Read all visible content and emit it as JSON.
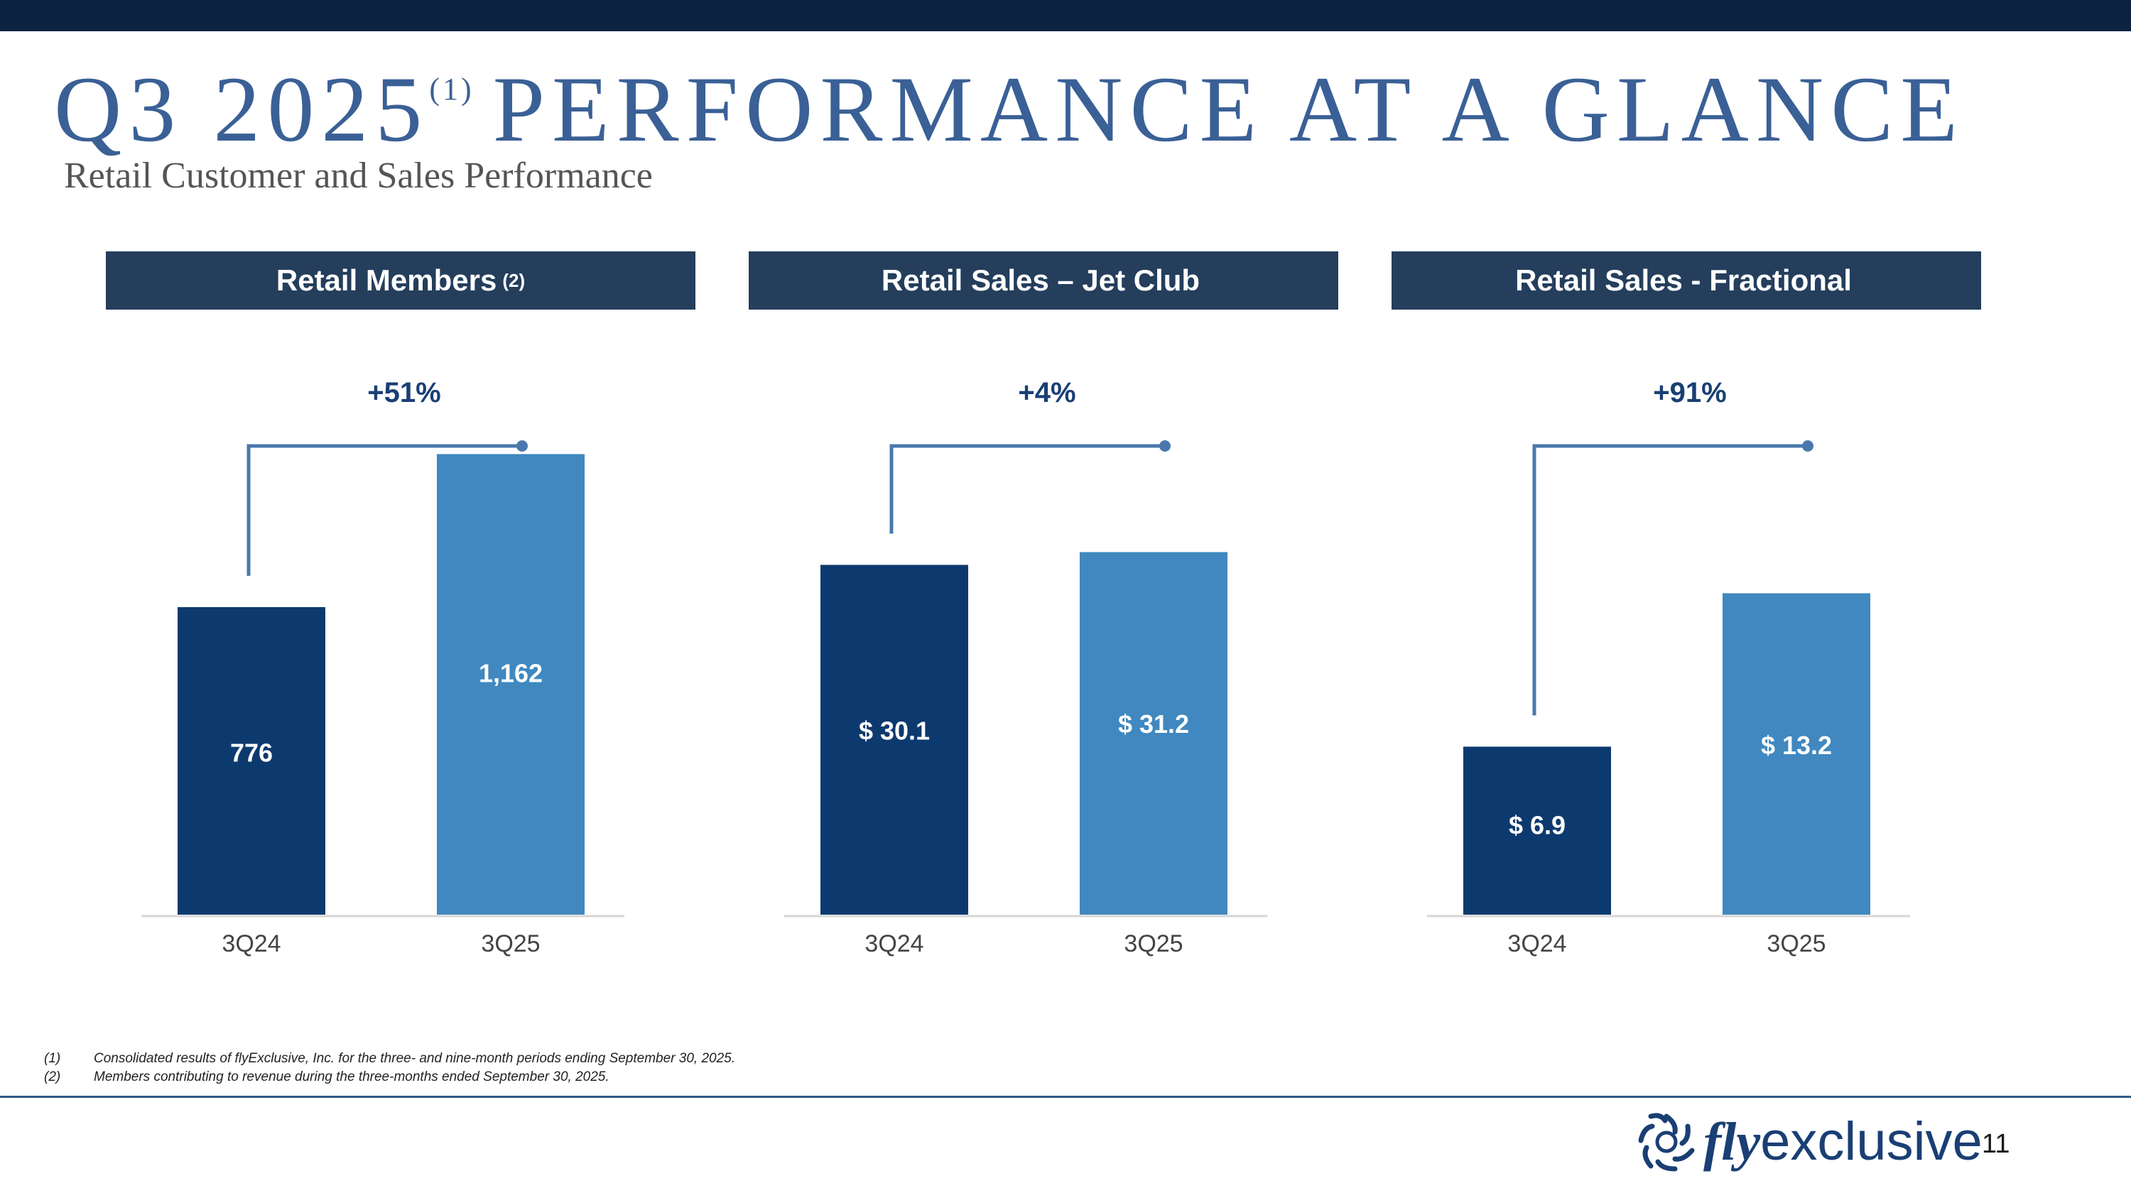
{
  "page": {
    "title": "Q3 2025",
    "title_sup": "(1)",
    "title_rest": "PERFORMANCE AT A GLANCE",
    "subtitle": "Retail Customer and Sales Performance"
  },
  "colors": {
    "top_bar": "#0b2240",
    "title": "#3a6096",
    "subtitle": "#555555",
    "header_bg": "#243e5c",
    "bar_3q24": "#0d3a6e",
    "bar_3q25": "#4088bf",
    "connector": "#4a78ad",
    "growth_label": "#1a3f74",
    "axis": "#d6d6d6",
    "tick": "#444444",
    "bottom_rule": "#2f5b8a",
    "logo": "#1a3f74"
  },
  "chart_data": [
    {
      "type": "bar",
      "title": "Retail Members",
      "title_sup": "(2)",
      "categories": [
        "3Q24",
        "3Q25"
      ],
      "values": [
        776,
        1162
      ],
      "labels": [
        "776",
        "1,162"
      ],
      "growth": "+51%",
      "ylim": [
        0,
        1290
      ],
      "xlabel": "",
      "ylabel": ""
    },
    {
      "type": "bar",
      "title": "Retail Sales – Jet Club",
      "title_sup": "",
      "categories": [
        "3Q24",
        "3Q25"
      ],
      "values": [
        30.1,
        31.2
      ],
      "labels": [
        "$ 30.1",
        "$ 31.2"
      ],
      "growth": "+4%",
      "ylim": [
        0,
        44
      ],
      "xlabel": "",
      "ylabel": ""
    },
    {
      "type": "bar",
      "title": "Retail Sales - Fractional",
      "title_sup": "",
      "categories": [
        "3Q24",
        "3Q25"
      ],
      "values": [
        6.9,
        13.2
      ],
      "labels": [
        "$ 6.9",
        "$ 13.2"
      ],
      "growth": "+91%",
      "ylim": [
        0,
        21
      ],
      "xlabel": "",
      "ylabel": ""
    }
  ],
  "footnotes": [
    {
      "num": "(1)",
      "text": "Consolidated results of flyExclusive, Inc. for the three- and nine-month periods ending September 30, 2025."
    },
    {
      "num": "(2)",
      "text": "Members contributing to revenue during the three-months ended September 30, 2025."
    }
  ],
  "logo": {
    "fly": "fly",
    "rest": "exclusive"
  },
  "page_number": "11"
}
